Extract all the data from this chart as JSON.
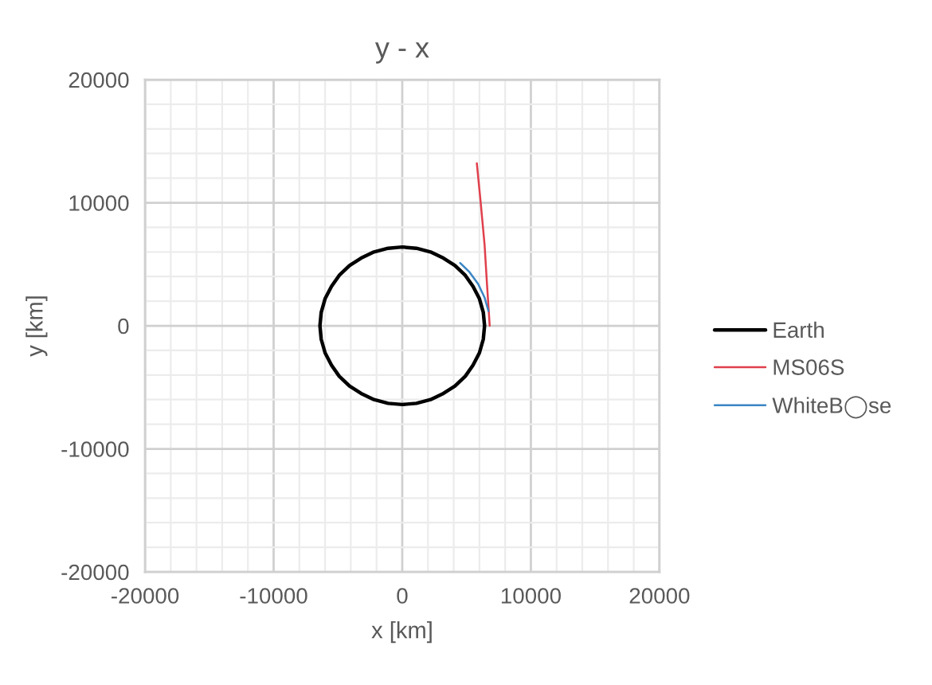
{
  "chart_data": {
    "type": "line",
    "title": "y - x",
    "xlabel": "x [km]",
    "ylabel": "y [km]",
    "xlim": [
      -20000,
      20000
    ],
    "ylim": [
      -20000,
      20000
    ],
    "xticks": [
      -20000,
      {
        "value": -18000,
        "label": null
      },
      {
        "value": -16000,
        "label": null
      },
      {
        "value": -14000,
        "label": null
      },
      {
        "value": -12000,
        "label": null
      },
      -10000,
      {
        "value": -8000,
        "label": null
      },
      {
        "value": -6000,
        "label": null
      },
      {
        "value": -4000,
        "label": null
      },
      {
        "value": -2000,
        "label": null
      },
      0,
      {
        "value": 2000,
        "label": null
      },
      {
        "value": 4000,
        "label": null
      },
      {
        "value": 6000,
        "label": null
      },
      {
        "value": 8000,
        "label": null
      },
      10000,
      {
        "value": 12000,
        "label": null
      },
      {
        "value": 14000,
        "label": null
      },
      {
        "value": 16000,
        "label": null
      },
      {
        "value": 18000,
        "label": null
      },
      20000
    ],
    "yticks": [
      -20000,
      {
        "value": -18000,
        "label": null
      },
      {
        "value": -16000,
        "label": null
      },
      {
        "value": -14000,
        "label": null
      },
      {
        "value": -12000,
        "label": null
      },
      -10000,
      {
        "value": -8000,
        "label": null
      },
      {
        "value": -6000,
        "label": null
      },
      {
        "value": -4000,
        "label": null
      },
      {
        "value": -2000,
        "label": null
      },
      0,
      {
        "value": 2000,
        "label": null
      },
      {
        "value": 4000,
        "label": null
      },
      {
        "value": 6000,
        "label": null
      },
      {
        "value": 8000,
        "label": null
      },
      10000,
      {
        "value": 12000,
        "label": null
      },
      {
        "value": 14000,
        "label": null
      },
      {
        "value": 16000,
        "label": null
      },
      {
        "value": 18000,
        "label": null
      },
      20000
    ],
    "grid": true,
    "legend": "right",
    "series": [
      {
        "name": "Earth",
        "color": "#000000",
        "x": [
          6400,
          6300,
          6000,
          5500,
          4900,
          4100,
          3200,
          2200,
          1100,
          0,
          -1100,
          -2200,
          -3200,
          -4100,
          -4900,
          -5500,
          -6000,
          -6300,
          -6400,
          -6300,
          -6000,
          -5500,
          -4900,
          -4100,
          -3200,
          -2200,
          -1100,
          0,
          1100,
          2200,
          3200,
          4100,
          4900,
          5500,
          6000,
          6300,
          6400,
          6300
        ],
        "values": [
          0,
          1100,
          2200,
          3200,
          4100,
          4900,
          5500,
          6000,
          6300,
          6400,
          6300,
          6000,
          5500,
          4900,
          4100,
          3200,
          2200,
          1100,
          0,
          -1100,
          -2200,
          -3200,
          -4100,
          -4900,
          -5500,
          -6000,
          -6300,
          -6400,
          -6300,
          -6000,
          -5500,
          -4900,
          -4100,
          -3200,
          -2200,
          -1100,
          0,
          1100
        ]
      },
      {
        "name": "MS06S",
        "color": "#e0404c",
        "x": [
          6800,
          6600,
          6400,
          6100,
          5800
        ],
        "values": [
          0,
          3200,
          6600,
          10000,
          13200
        ]
      },
      {
        "name": "WhiteB◯se",
        "color": "#3b85c4",
        "x": [
          6700,
          6400,
          5900,
          5200,
          4500
        ],
        "values": [
          1200,
          2300,
          3400,
          4400,
          5100
        ]
      }
    ]
  }
}
